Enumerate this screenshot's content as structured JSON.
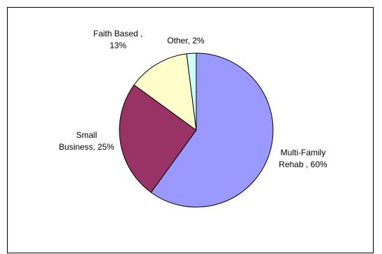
{
  "chart_data": {
    "type": "pie",
    "title": "",
    "start_angle_deg": 0,
    "direction": "clockwise",
    "legend": "none",
    "slices": [
      {
        "label_lines": [
          "Multi-Family",
          "Rehab , 60%"
        ],
        "category": "Multi-Family Rehab",
        "value": 60,
        "color": "#9999ff"
      },
      {
        "label_lines": [
          "Small",
          "Business, 25%"
        ],
        "category": "Small Business",
        "value": 25,
        "color": "#993366"
      },
      {
        "label_lines": [
          "Faith Based ,",
          "13%"
        ],
        "category": "Faith Based",
        "value": 13,
        "color": "#ffffcc"
      },
      {
        "label_lines": [
          "Other, 2%"
        ],
        "category": "Other",
        "value": 2,
        "color": "#ccffff"
      }
    ]
  }
}
